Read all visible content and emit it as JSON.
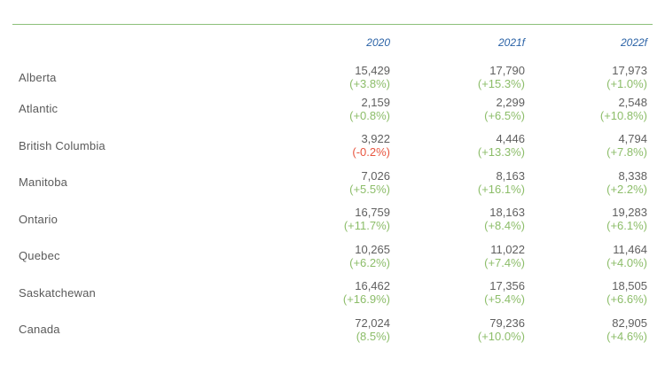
{
  "table": {
    "headers": [
      "",
      "2020",
      "2021f",
      "2022f"
    ],
    "rows": [
      {
        "region": "Alberta",
        "cells": [
          {
            "value": "15,429",
            "change": "(+3.8%)",
            "negative": false
          },
          {
            "value": "17,790",
            "change": "(+15.3%)",
            "negative": false
          },
          {
            "value": "17,973",
            "change": "(+1.0%)",
            "negative": false
          }
        ]
      },
      {
        "region": "Atlantic",
        "cells": [
          {
            "value": "2,159",
            "change": "(+0.8%)",
            "negative": false
          },
          {
            "value": "2,299",
            "change": "(+6.5%)",
            "negative": false
          },
          {
            "value": "2,548",
            "change": "(+10.8%)",
            "negative": false
          }
        ]
      },
      {
        "region": "British Columbia",
        "cells": [
          {
            "value": "3,922",
            "change": "(-0.2%)",
            "negative": true
          },
          {
            "value": "4,446",
            "change": "(+13.3%)",
            "negative": false
          },
          {
            "value": "4,794",
            "change": "(+7.8%)",
            "negative": false
          }
        ]
      },
      {
        "region": "Manitoba",
        "cells": [
          {
            "value": "7,026",
            "change": "(+5.5%)",
            "negative": false
          },
          {
            "value": "8,163",
            "change": "(+16.1%)",
            "negative": false
          },
          {
            "value": "8,338",
            "change": "(+2.2%)",
            "negative": false
          }
        ]
      },
      {
        "region": "Ontario",
        "cells": [
          {
            "value": "16,759",
            "change": "(+11.7%)",
            "negative": false
          },
          {
            "value": "18,163",
            "change": "(+8.4%)",
            "negative": false
          },
          {
            "value": "19,283",
            "change": "(+6.1%)",
            "negative": false
          }
        ]
      },
      {
        "region": "Quebec",
        "cells": [
          {
            "value": "10,265",
            "change": "(+6.2%)",
            "negative": false
          },
          {
            "value": "11,022",
            "change": "(+7.4%)",
            "negative": false
          },
          {
            "value": "11,464",
            "change": "(+4.0%)",
            "negative": false
          }
        ]
      },
      {
        "region": "Saskatchewan",
        "cells": [
          {
            "value": "16,462",
            "change": "(+16.9%)",
            "negative": false
          },
          {
            "value": "17,356",
            "change": "(+5.4%)",
            "negative": false
          },
          {
            "value": "18,505",
            "change": "(+6.6%)",
            "negative": false
          }
        ]
      },
      {
        "region": "Canada",
        "cells": [
          {
            "value": "72,024",
            "change": "(8.5%)",
            "negative": false
          },
          {
            "value": "79,236",
            "change": "(+10.0%)",
            "negative": false
          },
          {
            "value": "82,905",
            "change": "(+4.6%)",
            "negative": false
          }
        ]
      }
    ]
  },
  "colors": {
    "header_text": "#2a62a6",
    "rule": "#8cc07a",
    "positive_change": "#8cbd69",
    "negative_change": "#e8553f",
    "body_text": "#5a5a5a"
  }
}
